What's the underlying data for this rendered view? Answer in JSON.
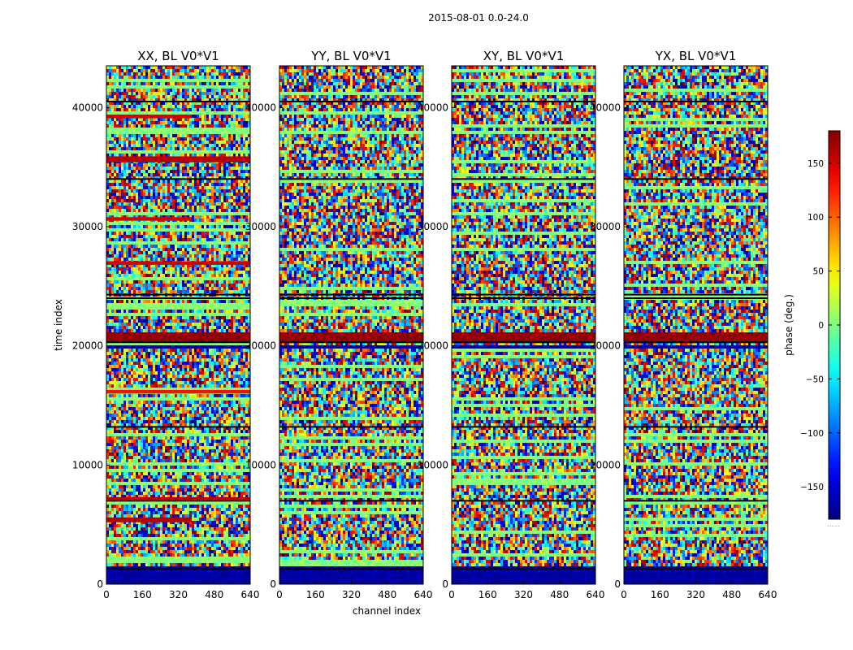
{
  "chart_data": {
    "type": "heatmap",
    "suptitle": "2015-08-01 0.0-24.0",
    "xlabel": "channel index",
    "ylabel": "time index",
    "xlim": [
      0,
      640
    ],
    "ylim": [
      0,
      43500
    ],
    "xticks": [
      0,
      160,
      320,
      480,
      640
    ],
    "yticks": [
      0,
      10000,
      20000,
      30000,
      40000
    ],
    "panels": [
      {
        "title": "XX, BL V0*V1",
        "show_yticklabels": true
      },
      {
        "title": "YY, BL V0*V1",
        "show_yticklabels": true
      },
      {
        "title": "XY, BL V0*V1",
        "show_yticklabels": true
      },
      {
        "title": "YX, BL V0*V1",
        "show_yticklabels": true
      }
    ],
    "colorbar": {
      "label": "phase (deg.)",
      "range": [
        -180,
        180
      ],
      "ticks": [
        -150,
        -100,
        -50,
        0,
        50,
        100,
        150
      ],
      "colormap": "jet",
      "extra_text": "......"
    },
    "bands": {
      "time_boundaries": [
        1300,
        7000,
        13200,
        20300,
        24000,
        24300,
        34000,
        40500
      ],
      "low_flagged_rows": [
        0,
        1500
      ],
      "bright_band_rows": [
        20200,
        21000
      ],
      "dark_band_rows": [
        19700,
        20100
      ],
      "phase_stripes_XX": [
        {
          "t0": 5200,
          "t1": 5600,
          "phase": 160,
          "ch_end": 380
        },
        {
          "t0": 7000,
          "t1": 7300,
          "phase": 160,
          "ch_end": 640
        },
        {
          "t0": 16000,
          "t1": 16300,
          "phase": 130,
          "ch_end": 640
        },
        {
          "t0": 26800,
          "t1": 27100,
          "phase": 150,
          "ch_end": 640
        },
        {
          "t0": 30500,
          "t1": 30800,
          "phase": 150,
          "ch_end": 380
        },
        {
          "t0": 35400,
          "t1": 35900,
          "phase": 160,
          "ch_end": 640
        },
        {
          "t0": 39100,
          "t1": 39400,
          "phase": 150,
          "ch_end": 380
        }
      ]
    }
  }
}
